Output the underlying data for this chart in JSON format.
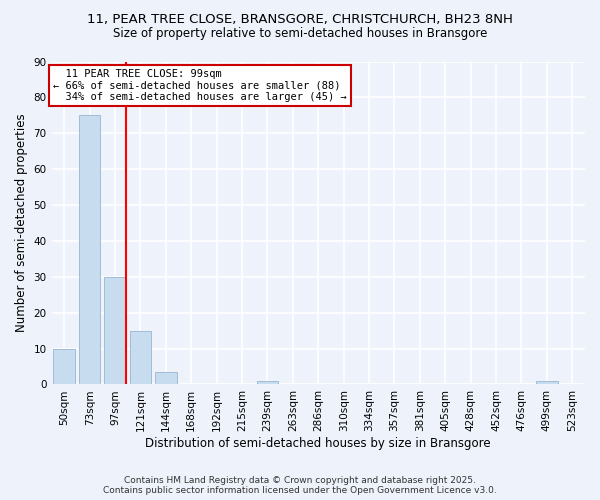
{
  "title_line1": "11, PEAR TREE CLOSE, BRANSGORE, CHRISTCHURCH, BH23 8NH",
  "title_line2": "Size of property relative to semi-detached houses in Bransgore",
  "bar_labels": [
    "50sqm",
    "73sqm",
    "97sqm",
    "121sqm",
    "144sqm",
    "168sqm",
    "192sqm",
    "215sqm",
    "239sqm",
    "263sqm",
    "286sqm",
    "310sqm",
    "334sqm",
    "357sqm",
    "381sqm",
    "405sqm",
    "428sqm",
    "452sqm",
    "476sqm",
    "499sqm",
    "523sqm"
  ],
  "bar_values": [
    10,
    75,
    30,
    15,
    3.5,
    0,
    0,
    0,
    1,
    0,
    0,
    0,
    0,
    0,
    0,
    0,
    0,
    0,
    0,
    1,
    0
  ],
  "bar_color": "#c8dcf0",
  "bar_edge_color": "#a0bcd8",
  "vline_x_index": 2,
  "vline_color": "red",
  "xlabel": "Distribution of semi-detached houses by size in Bransgore",
  "ylabel": "Number of semi-detached properties",
  "ylim": [
    0,
    90
  ],
  "yticks": [
    0,
    10,
    20,
    30,
    40,
    50,
    60,
    70,
    80,
    90
  ],
  "annotation_title": "11 PEAR TREE CLOSE: 99sqm",
  "annotation_line1": "← 66% of semi-detached houses are smaller (88)",
  "annotation_line2": "34% of semi-detached houses are larger (45) →",
  "footer_line1": "Contains HM Land Registry data © Crown copyright and database right 2025.",
  "footer_line2": "Contains public sector information licensed under the Open Government Licence v3.0.",
  "background_color": "#eef2fb",
  "grid_color": "white",
  "annotation_box_facecolor": "white",
  "annotation_box_edgecolor": "#cc0000",
  "title_fontsize": 9.5,
  "subtitle_fontsize": 8.5,
  "axis_label_fontsize": 8.5,
  "tick_fontsize": 7.5,
  "annotation_fontsize": 7.5,
  "footer_fontsize": 6.5
}
